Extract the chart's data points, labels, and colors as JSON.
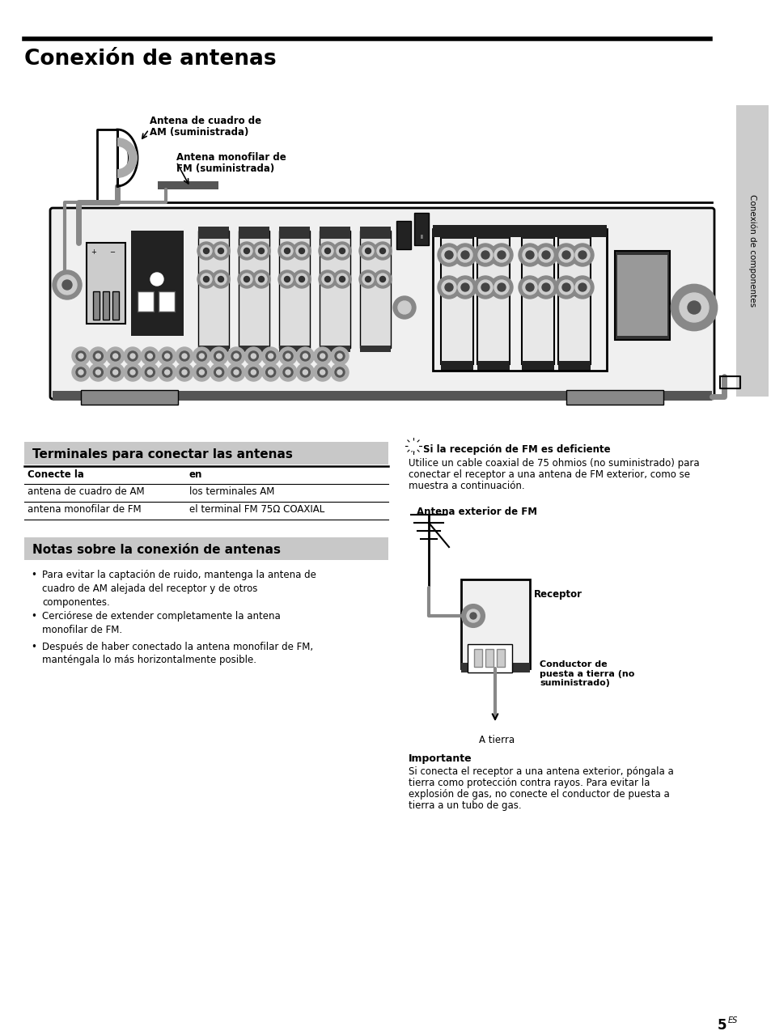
{
  "title": "Conexión de antenas",
  "bg_color": "#ffffff",
  "text_color": "#000000",
  "sidebar_text": "Conexión de componentes",
  "section1_title": "Terminales para conectar las antenas",
  "section1_bg": "#cccccc",
  "table_header_col1": "Conecte la",
  "table_header_col2": "en",
  "table_row1_col1": "antena de cuadro de AM",
  "table_row1_col2": "los terminales AM",
  "table_row2_col1": "antena monofilar de FM",
  "table_row2_col2": "el terminal FM 75Ω COAXIAL",
  "section2_title": "Notas sobre la conexión de antenas",
  "section2_bg": "#cccccc",
  "bullet1": "Para evitar la captación de ruido, mantenga la antena de\ncuadro de AM alejada del receptor y de otros\ncomponentes.",
  "bullet2": "Cercíor ese de extender completamente la antena\nmonofilar de FM.",
  "bullet3": "Después de haber conectado la antena monofilar de FM,\nmanténgala lo más horizontalmente posible.",
  "fm_tip_title": "Si la recepción de FM es deficiente",
  "fm_tip_body1": "Utilice un cable coaxial de 75 ohmios (no suministrado) para",
  "fm_tip_body2": "conectar el receptor a una antena de FM exterior, como se",
  "fm_tip_body3": "muestra a continuación.",
  "antenna_ext_label": "Antena exterior de FM",
  "receptor_label": "Receptor",
  "conductor_label": "Conductor de\npuesta a tierra (no\nsuministrado)",
  "tierra_label": "A tierra",
  "importante_title": "Importante",
  "importante_body1": "Si conecta el receptor a una antena exterior, póngala a",
  "importante_body2": "tierra como protección contra rayos. Para evitar la",
  "importante_body3": "explosión de gas, no conecte el conductor de puesta a",
  "importante_body4": "tierra a un tubo de gas.",
  "am_antenna_label_line1": "Antena de cuadro de",
  "am_antenna_label_line2": "AM (suministrada)",
  "fm_antenna_label_line1": "Antena monofilar de",
  "fm_antenna_label_line2": "FM (suministrada)",
  "page_num": "5",
  "page_sup": "ES",
  "gray_wire": "#888888",
  "dark_gray": "#444444",
  "light_gray": "#cccccc",
  "mid_gray": "#888888",
  "sidebar_color": "#cccccc"
}
